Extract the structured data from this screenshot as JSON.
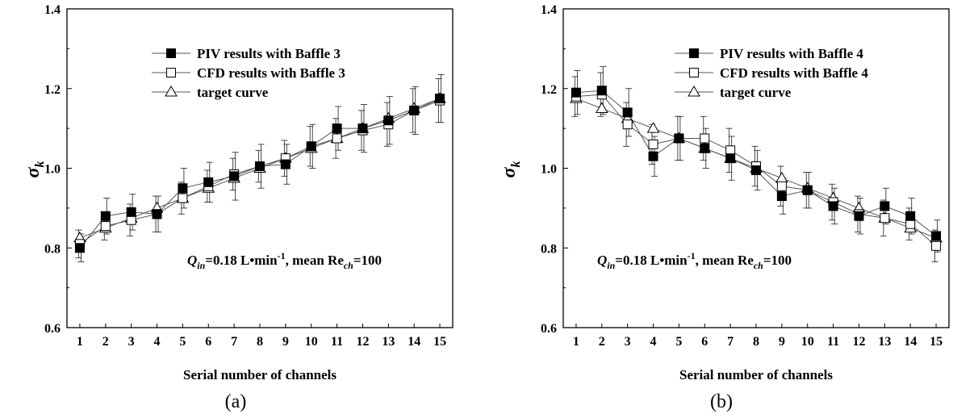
{
  "chart_data": [
    {
      "type": "line",
      "panel_label": "(a)",
      "xlabel": "Serial number of channels",
      "ylabel": "σ",
      "ylabel_sub": "k",
      "xlim": [
        0.5,
        15.5
      ],
      "ylim": [
        0.6,
        1.4
      ],
      "x_ticks": [
        1,
        2,
        3,
        4,
        5,
        6,
        7,
        8,
        9,
        10,
        11,
        12,
        13,
        14,
        15
      ],
      "y_ticks": [
        "0.6",
        "0.8",
        "1.0",
        "1.2",
        "1.4"
      ],
      "grid": false,
      "legend_position": "top-center",
      "annotation": {
        "q_symbol": "Q",
        "q_sub": "in",
        "q_text": "=0.18 L•min",
        "q_sup": "-1",
        "mean_text": ", mean Re",
        "re_sub": "ch",
        "re_value": "=100"
      },
      "x": [
        1,
        2,
        3,
        4,
        5,
        6,
        7,
        8,
        9,
        10,
        11,
        12,
        13,
        14,
        15
      ],
      "series": [
        {
          "name": "PIV results with Baffle 3",
          "marker": "filled-square",
          "values": [
            0.8,
            0.88,
            0.89,
            0.885,
            0.95,
            0.965,
            0.98,
            1.005,
            1.01,
            1.055,
            1.1,
            1.1,
            1.12,
            1.145,
            1.175
          ],
          "error": [
            0.035,
            0.045,
            0.045,
            0.045,
            0.05,
            0.05,
            0.06,
            0.055,
            0.05,
            0.055,
            0.055,
            0.06,
            0.06,
            0.06,
            0.06
          ]
        },
        {
          "name": "CFD results with Baffle 3",
          "marker": "open-square",
          "values": [
            0.81,
            0.855,
            0.87,
            0.885,
            0.925,
            0.955,
            0.985,
            1.005,
            1.025,
            1.055,
            1.075,
            1.095,
            1.11,
            1.145,
            1.17
          ],
          "error": [
            0.035,
            0.035,
            0.04,
            0.045,
            0.04,
            0.04,
            0.04,
            0.04,
            0.045,
            0.05,
            0.05,
            0.05,
            0.055,
            0.055,
            0.055
          ]
        },
        {
          "name": "target curve",
          "marker": "open-triangle",
          "values": [
            0.825,
            0.85,
            0.875,
            0.9,
            0.925,
            0.95,
            0.975,
            1.0,
            1.025,
            1.05,
            1.075,
            1.1,
            1.125,
            1.15,
            1.175
          ],
          "error": []
        }
      ]
    },
    {
      "type": "line",
      "panel_label": "(b)",
      "xlabel": "Serial number of channels",
      "ylabel": "σ",
      "ylabel_sub": "k",
      "xlim": [
        0.5,
        15.5
      ],
      "ylim": [
        0.6,
        1.4
      ],
      "x_ticks": [
        1,
        2,
        3,
        4,
        5,
        6,
        7,
        8,
        9,
        10,
        11,
        12,
        13,
        14,
        15
      ],
      "y_ticks": [
        "0.6",
        "0.8",
        "1.0",
        "1.2",
        "1.4"
      ],
      "grid": false,
      "legend_position": "top-center",
      "annotation": {
        "q_symbol": "Q",
        "q_sub": "in",
        "q_text": "=0.18 L•min",
        "q_sup": "-1",
        "mean_text": ", mean Re",
        "re_sub": "ch",
        "re_value": "=100"
      },
      "x": [
        1,
        2,
        3,
        4,
        5,
        6,
        7,
        8,
        9,
        10,
        11,
        12,
        13,
        14,
        15
      ],
      "series": [
        {
          "name": "PIV results with Baffle 4",
          "marker": "filled-square",
          "values": [
            1.19,
            1.195,
            1.14,
            1.03,
            1.075,
            1.05,
            1.025,
            0.995,
            0.93,
            0.945,
            0.905,
            0.88,
            0.905,
            0.88,
            0.83
          ],
          "error": [
            0.055,
            0.06,
            0.06,
            0.05,
            0.055,
            0.05,
            0.055,
            0.05,
            0.045,
            0.045,
            0.045,
            0.045,
            0.045,
            0.045,
            0.04
          ]
        },
        {
          "name": "CFD results with Baffle 4",
          "marker": "open-square",
          "values": [
            1.18,
            1.185,
            1.11,
            1.06,
            1.075,
            1.075,
            1.045,
            1.005,
            0.955,
            0.945,
            0.915,
            0.885,
            0.875,
            0.86,
            0.805
          ],
          "error": [
            0.05,
            0.055,
            0.055,
            0.05,
            0.055,
            0.055,
            0.055,
            0.05,
            0.05,
            0.045,
            0.045,
            0.045,
            0.045,
            0.04,
            0.04
          ]
        },
        {
          "name": "target curve",
          "marker": "open-triangle",
          "values": [
            1.175,
            1.15,
            1.125,
            1.1,
            1.075,
            1.05,
            1.025,
            1.0,
            0.975,
            0.95,
            0.925,
            0.9,
            0.875,
            0.85,
            0.825
          ],
          "error": []
        }
      ]
    }
  ]
}
